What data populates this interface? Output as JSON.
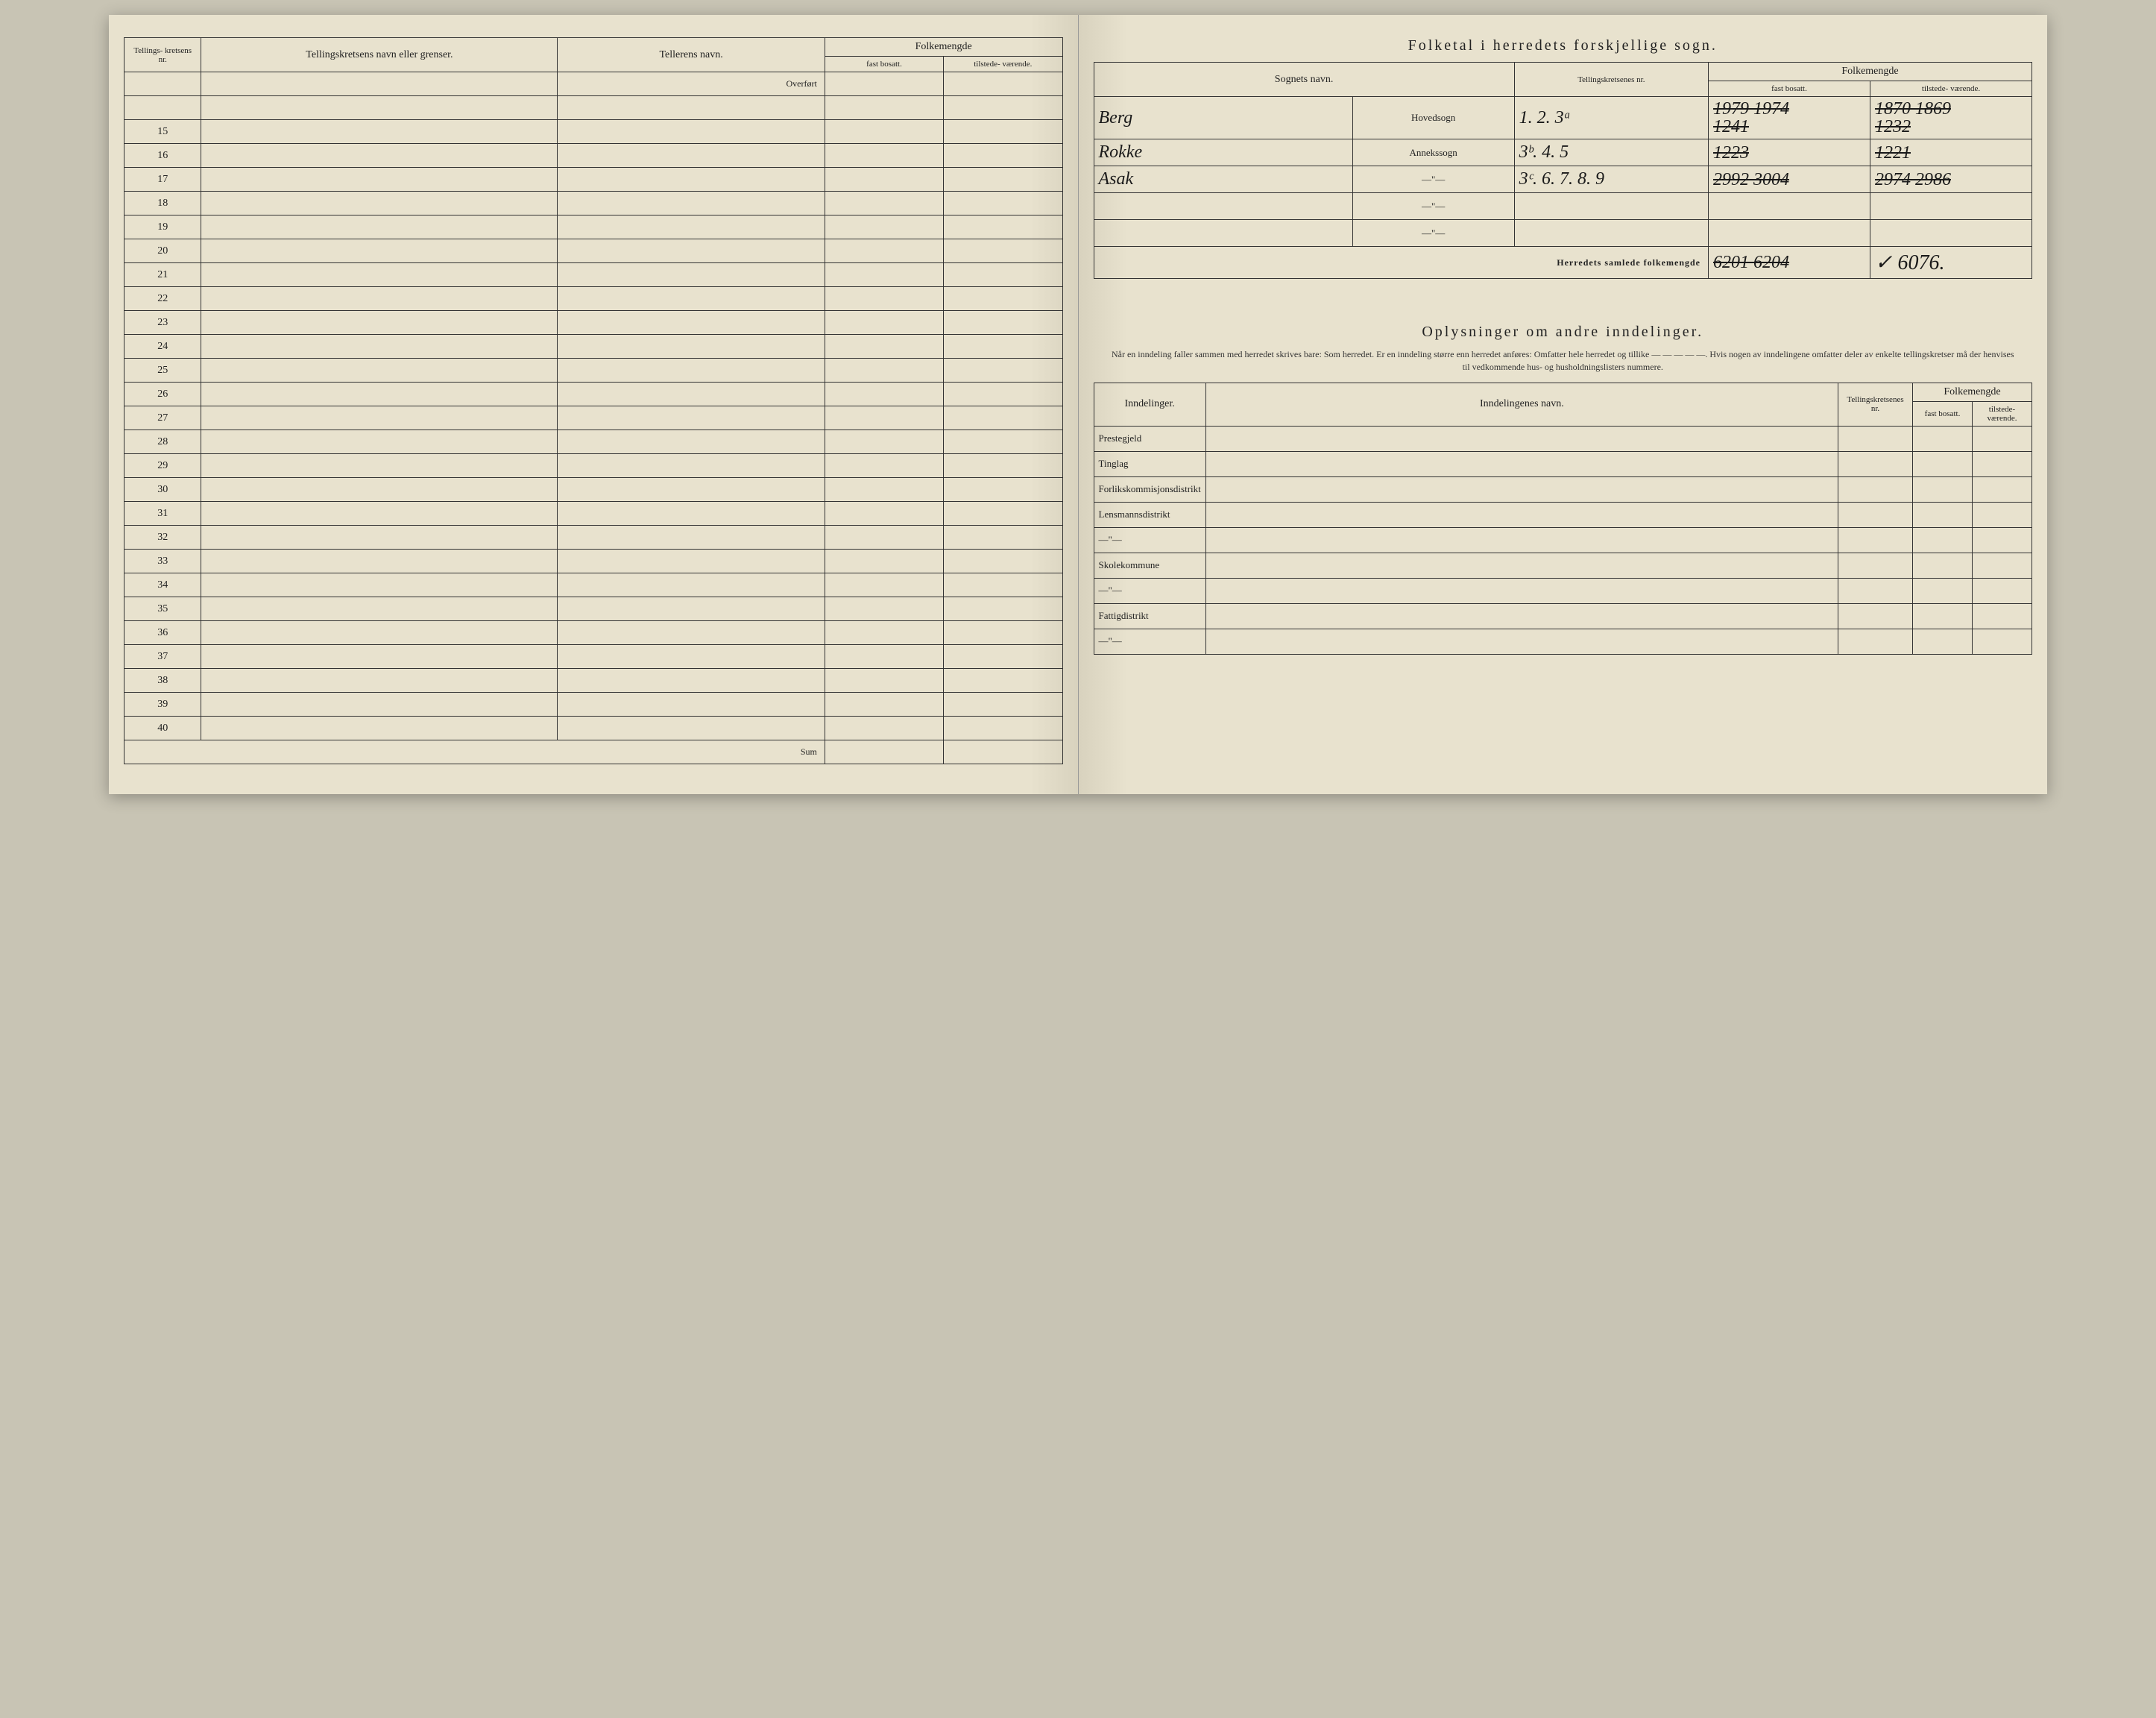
{
  "leftPage": {
    "header": {
      "nr": "Tellings-\nkretsens\nnr.",
      "kretsNavn": "Tellingskretsens navn eller grenser.",
      "tellerNavn": "Tellerens navn.",
      "folkemengde": "Folkemengde",
      "fast": "fast\nbosatt.",
      "tilstede": "tilstede-\nværende."
    },
    "overfort": "Overført",
    "rowNumbers": [
      "",
      "15",
      "16",
      "17",
      "18",
      "19",
      "20",
      "21",
      "22",
      "23",
      "24",
      "25",
      "26",
      "27",
      "28",
      "29",
      "30",
      "31",
      "32",
      "33",
      "34",
      "35",
      "36",
      "37",
      "38",
      "39",
      "40"
    ],
    "sum": "Sum"
  },
  "rightPage": {
    "title1": "Folketal i herredets forskjellige sogn.",
    "header1": {
      "sognNavn": "Sognets navn.",
      "kretsNr": "Tellingskretsenes\nnr.",
      "folkemengde": "Folkemengde",
      "fast": "fast\nbosatt.",
      "tilstede": "tilstede-\nværende."
    },
    "rows1": [
      {
        "navn": "Berg",
        "type": "Hovedsogn",
        "nr": "1. 2. 3ᵃ",
        "fast": "1979\n1974",
        "fast_struck": true,
        "tilst": "1870\n1869",
        "tilst_struck": true,
        "fast2": "1241",
        "tilst2": "1232"
      },
      {
        "navn": "Rokke",
        "type": "Annekssogn",
        "nr": "3ᵇ. 4. 5",
        "fast": "1223",
        "fast_struck": true,
        "tilst": "1221",
        "tilst_struck": true
      },
      {
        "navn": "Asak",
        "type": "—\"—",
        "nr": "3ᶜ. 6. 7. 8. 9",
        "fast": "2992\n3004",
        "fast_struck": true,
        "tilst": "2974\n2986",
        "tilst_struck": true
      }
    ],
    "blankType": "—\"—",
    "samlede": "Herredets samlede folkemengde",
    "samledeFast": "6201\n6204",
    "samledeTilst": "✓ 6076.",
    "title2": "Oplysninger om andre inndelinger.",
    "instructions": "Når en inndeling faller sammen med herredet skrives bare: Som herredet. Er en inndeling større enn herredet anføres: Omfatter hele herredet og tillike — — — — —. Hvis nogen av inndelingene omfatter deler av enkelte tellingskretser må der henvises til vedkommende hus- og husholdningslisters nummere.",
    "header2": {
      "inndelinger": "Inndelinger.",
      "inndNavn": "Inndelingenes navn.",
      "kretsNr": "Tellingskretsenes\nnr.",
      "folkemengde": "Folkemengde",
      "fast": "fast\nbosatt.",
      "tilstede": "tilstede-\nværende."
    },
    "rows2": [
      "Prestegjeld",
      "Tinglag",
      "Forlikskommisjonsdistrikt",
      "Lensmannsdistrikt",
      "—\"—",
      "Skolekommune",
      "—\"—",
      "Fattigdistrikt",
      "—\"—"
    ]
  }
}
